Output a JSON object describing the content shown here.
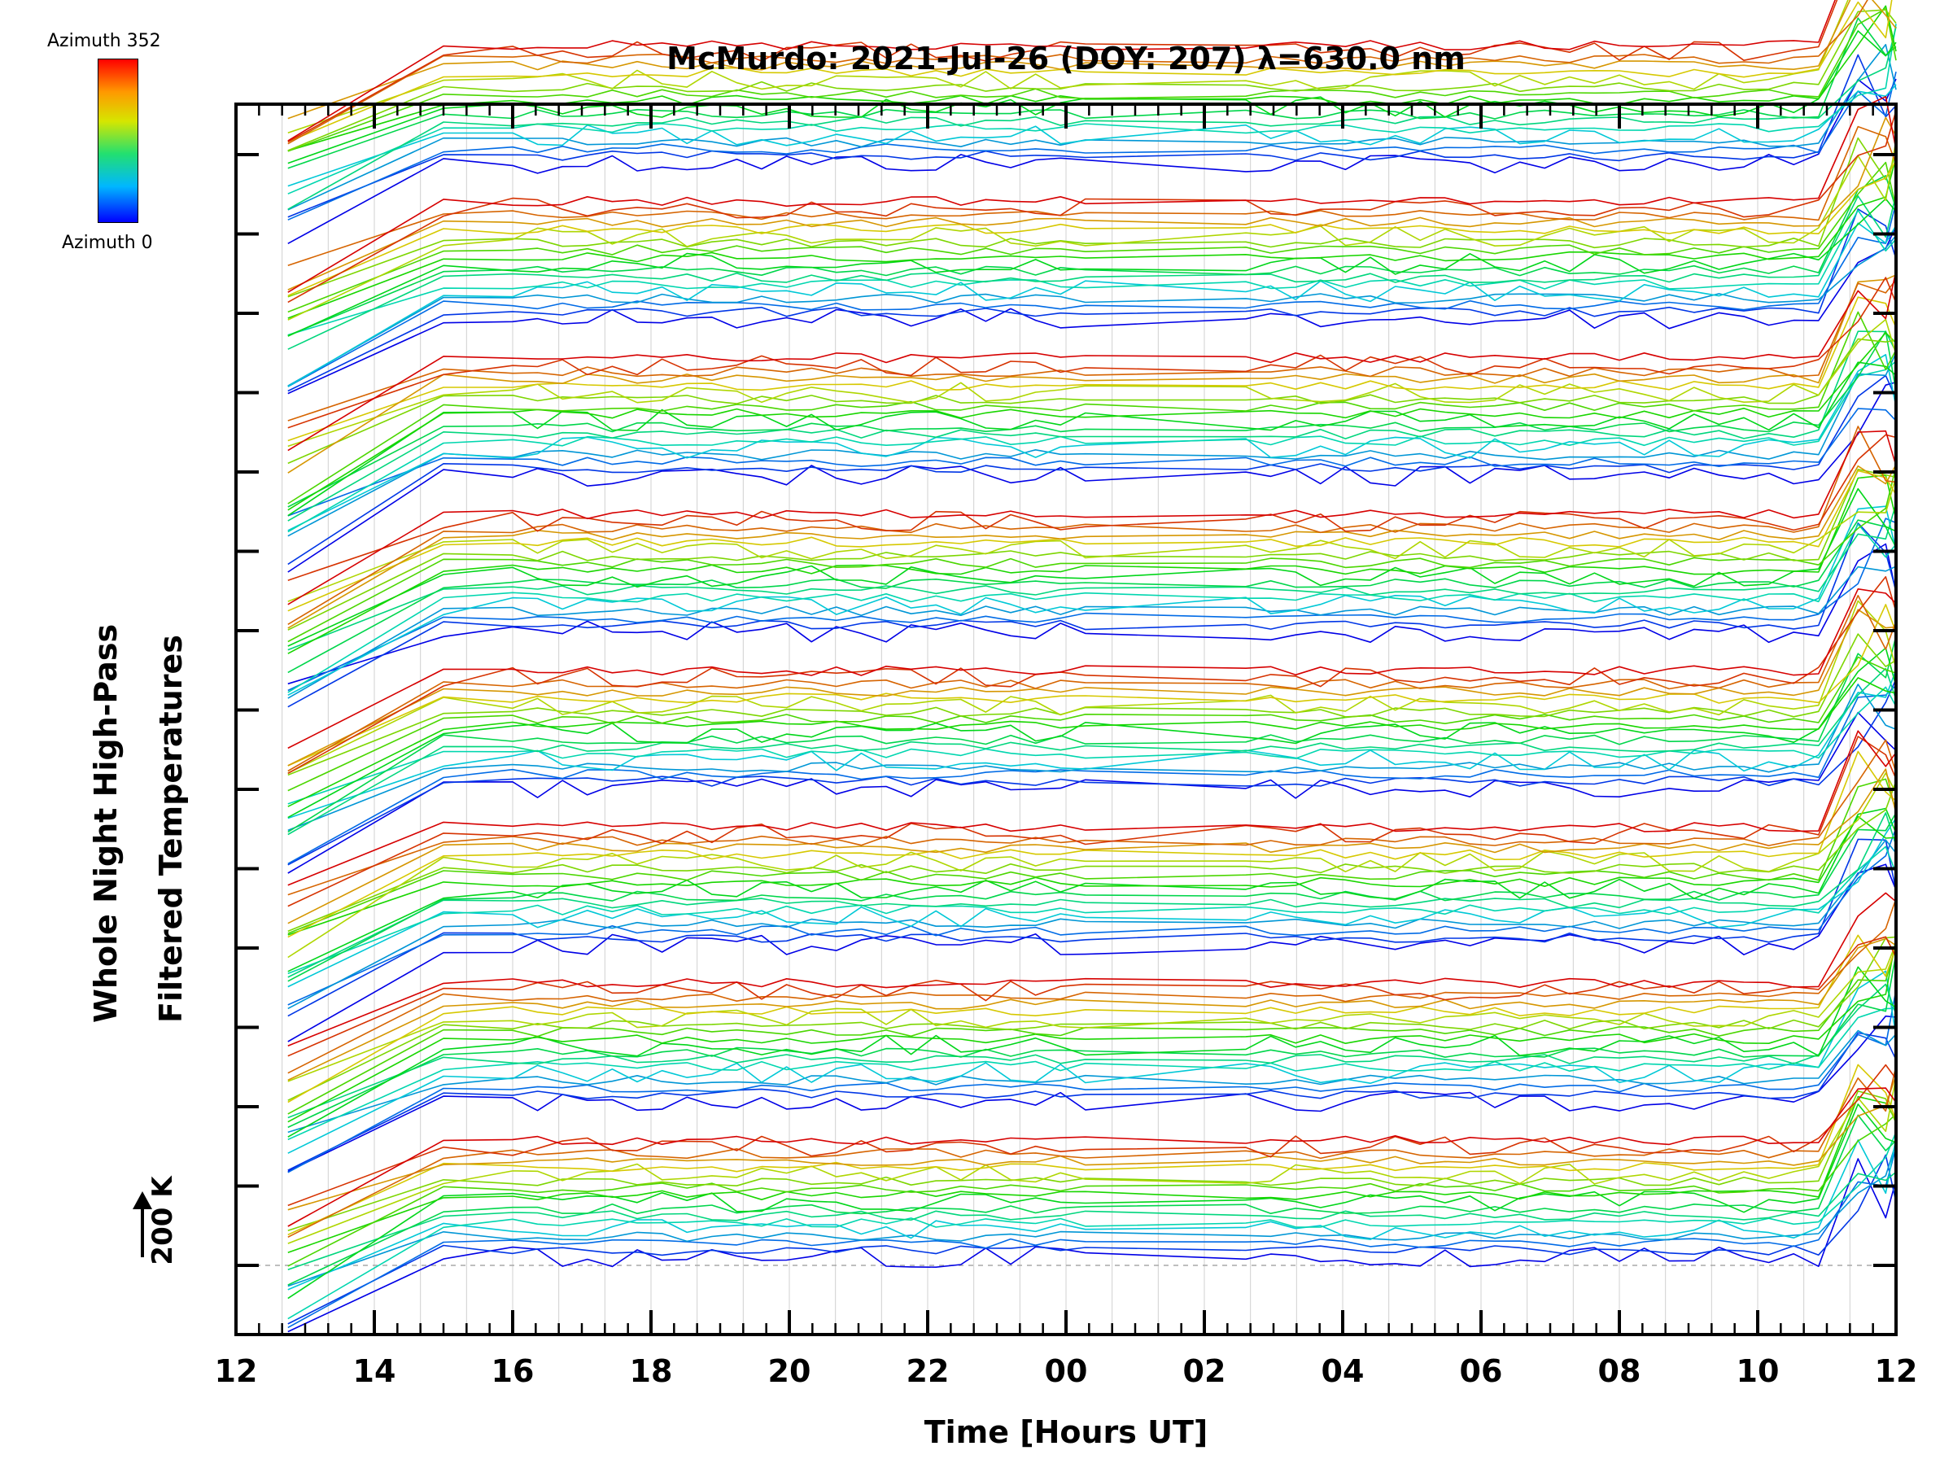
{
  "chart_data": {
    "type": "line",
    "title": "McMurdo: 2021-Jul-26 (DOY: 207) λ=630.0 nm",
    "xlabel": "Time [Hours UT]",
    "ylabel_lines": [
      "Whole Night High-Pass",
      "Filtered Temperatures"
    ],
    "scale_note": "200 K",
    "x_tick_labels": [
      "12",
      "14",
      "16",
      "18",
      "20",
      "22",
      "00",
      "02",
      "04",
      "06",
      "08",
      "10",
      "12"
    ],
    "xlim_hours": [
      12,
      36
    ],
    "colorbar": {
      "top_label": "Azimuth 352",
      "bottom_label": "Azimuth 0"
    },
    "n_zenith_groups": 8,
    "azimuths_per_group": 18,
    "legend_placement": "top-left",
    "grid": true
  },
  "colors": {
    "axis": "#000000",
    "grid": "#d0d0d0",
    "baseline": "#a8a8a8"
  }
}
